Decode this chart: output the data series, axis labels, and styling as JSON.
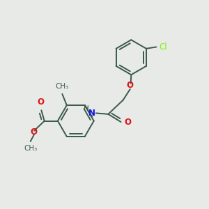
{
  "background_color": "#e8eae8",
  "bond_color": "#3a5a4a",
  "atom_colors": {
    "O": "#dd1111",
    "N": "#1111dd",
    "Cl": "#88ee00",
    "C": "#3a5a4a",
    "H": "#3a5a4a"
  },
  "figsize": [
    3.0,
    3.0
  ],
  "dpi": 100
}
